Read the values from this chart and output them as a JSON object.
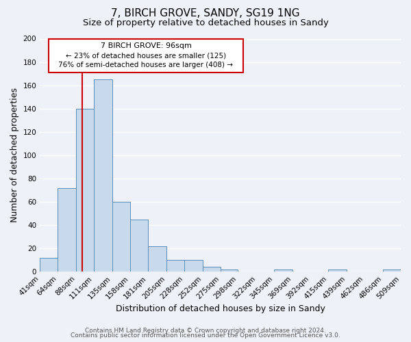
{
  "title": "7, BIRCH GROVE, SANDY, SG19 1NG",
  "subtitle": "Size of property relative to detached houses in Sandy",
  "xlabel": "Distribution of detached houses by size in Sandy",
  "ylabel": "Number of detached properties",
  "bin_edges": [
    41,
    64,
    88,
    111,
    135,
    158,
    181,
    205,
    228,
    252,
    275,
    298,
    322,
    345,
    369,
    392,
    415,
    439,
    462,
    486,
    509
  ],
  "bin_counts": [
    12,
    72,
    140,
    165,
    60,
    45,
    22,
    10,
    10,
    4,
    2,
    0,
    0,
    2,
    0,
    0,
    2,
    0,
    0,
    2
  ],
  "bar_facecolor": "#c9d9ec",
  "bar_edgecolor": "#5b8db8",
  "property_size": 96,
  "marker_line_color": "#cc0000",
  "annotation_box_edgecolor": "#cc0000",
  "annotation_title": "7 BIRCH GROVE: 96sqm",
  "annotation_line1": "← 23% of detached houses are smaller (125)",
  "annotation_line2": "76% of semi-detached houses are larger (408) →",
  "ylim": [
    0,
    200
  ],
  "yticks": [
    0,
    20,
    40,
    60,
    80,
    100,
    120,
    140,
    160,
    180,
    200
  ],
  "footer1": "Contains HM Land Registry data © Crown copyright and database right 2024.",
  "footer2": "Contains public sector information licensed under the Open Government Licence v3.0.",
  "background_color": "#eef2f8",
  "grid_color": "#ffffff",
  "title_fontsize": 11,
  "subtitle_fontsize": 9.5,
  "tick_label_fontsize": 7.5,
  "axis_label_fontsize": 9,
  "footer_fontsize": 6.5
}
